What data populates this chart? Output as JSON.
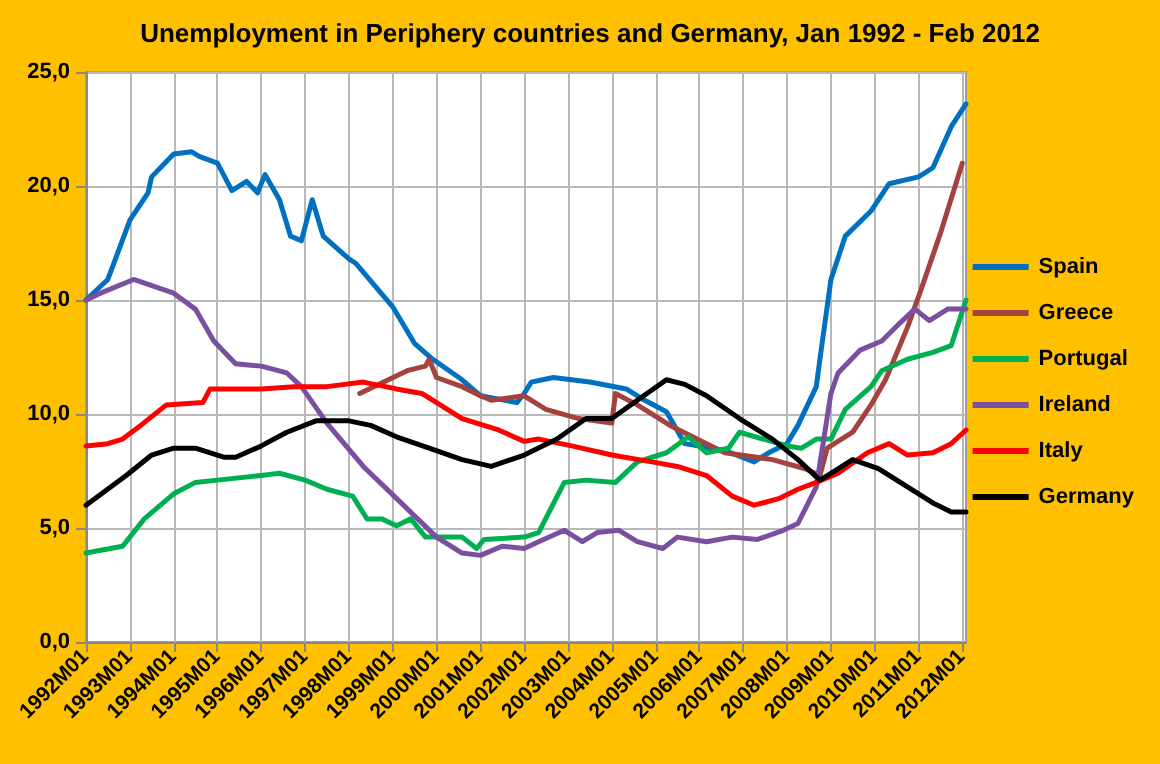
{
  "chart_data": {
    "type": "line",
    "title": "Unemployment in Periphery countries and Germany, Jan 1992 - Feb 2012",
    "xlim": [
      "1992-01",
      "2012-02"
    ],
    "xticks": [
      {
        "value": "1992-01",
        "label": "1992M01"
      },
      {
        "value": "1993-01",
        "label": "1993M01"
      },
      {
        "value": "1994-01",
        "label": "1994M01"
      },
      {
        "value": "1995-01",
        "label": "1995M01"
      },
      {
        "value": "1996-01",
        "label": "1996M01"
      },
      {
        "value": "1997-01",
        "label": "1997M01"
      },
      {
        "value": "1998-01",
        "label": "1998M01"
      },
      {
        "value": "1999-01",
        "label": "1999M01"
      },
      {
        "value": "2000-01",
        "label": "2000M01"
      },
      {
        "value": "2001-01",
        "label": "2001M01"
      },
      {
        "value": "2002-01",
        "label": "2002M01"
      },
      {
        "value": "2003-01",
        "label": "2003M01"
      },
      {
        "value": "2004-01",
        "label": "2004M01"
      },
      {
        "value": "2005-01",
        "label": "2005M01"
      },
      {
        "value": "2006-01",
        "label": "2006M01"
      },
      {
        "value": "2007-01",
        "label": "2007M01"
      },
      {
        "value": "2008-01",
        "label": "2008M01"
      },
      {
        "value": "2009-01",
        "label": "2009M01"
      },
      {
        "value": "2010-01",
        "label": "2010M01"
      },
      {
        "value": "2011-01",
        "label": "2011M01"
      },
      {
        "value": "2012-01",
        "label": "2012M01"
      }
    ],
    "ylim": [
      0,
      25
    ],
    "yticks": [
      {
        "value": 0,
        "label": "0,0"
      },
      {
        "value": 5,
        "label": "5,0"
      },
      {
        "value": 10,
        "label": "10,0"
      },
      {
        "value": 15,
        "label": "15,0"
      },
      {
        "value": 20,
        "label": "20,0"
      },
      {
        "value": 25,
        "label": "25,0"
      }
    ],
    "grid": true,
    "legend": "right",
    "marker": "none",
    "line_style": "solid",
    "series": [
      {
        "name": "Spain",
        "color": "#0070c0",
        "x": [
          "1992-01",
          "1992-07",
          "1993-01",
          "1993-06",
          "1993-07",
          "1994-01",
          "1994-06",
          "1994-08",
          "1995-01",
          "1995-05",
          "1995-09",
          "1995-12",
          "1996-02",
          "1996-06",
          "1996-09",
          "1996-12",
          "1997-03",
          "1997-06",
          "1998-01",
          "1998-03",
          "1999-01",
          "1999-07",
          "1999-12",
          "2000-08",
          "2001-01",
          "2001-11",
          "2002-01",
          "2002-03",
          "2002-09",
          "2003-07",
          "2004-05",
          "2004-10",
          "2005-04",
          "2005-09",
          "2006-08",
          "2007-04",
          "2007-08",
          "2008-01",
          "2008-04",
          "2008-09",
          "2008-10",
          "2009-01",
          "2009-05",
          "2009-12",
          "2010-05",
          "2011-01",
          "2011-05",
          "2011-10",
          "2012-02"
        ],
        "values": [
          15.0,
          15.9,
          18.5,
          19.7,
          20.4,
          21.4,
          21.5,
          21.3,
          21.0,
          19.8,
          20.2,
          19.7,
          20.5,
          19.4,
          17.8,
          17.6,
          19.4,
          17.8,
          16.8,
          16.6,
          14.7,
          13.1,
          12.4,
          11.5,
          10.8,
          10.5,
          10.9,
          11.4,
          11.6,
          11.4,
          11.1,
          10.6,
          10.1,
          8.7,
          8.4,
          7.9,
          8.3,
          8.7,
          9.5,
          11.2,
          12.4,
          15.9,
          17.8,
          18.9,
          20.1,
          20.4,
          20.8,
          22.6,
          23.6
        ]
      },
      {
        "name": "Greece",
        "color": "#a5423e",
        "x": [
          "1998-04",
          "1999-05",
          "1999-10",
          "1999-11",
          "2000-01",
          "2000-08",
          "2001-01",
          "2001-04",
          "2002-01",
          "2002-07",
          "2003-04",
          "2004-01",
          "2004-02",
          "2004-08",
          "2005-05",
          "2006-03",
          "2006-08",
          "2007-09",
          "2008-06",
          "2008-10",
          "2008-12",
          "2009-07",
          "2009-12",
          "2010-04",
          "2010-10",
          "2011-02",
          "2011-07",
          "2012-01"
        ],
        "values": [
          10.9,
          11.9,
          12.1,
          12.4,
          11.6,
          11.2,
          10.8,
          10.6,
          10.8,
          10.2,
          9.8,
          9.6,
          10.9,
          10.4,
          9.5,
          8.7,
          8.3,
          8.0,
          7.6,
          7.3,
          8.5,
          9.2,
          10.4,
          11.5,
          13.8,
          15.6,
          17.9,
          21.0
        ]
      },
      {
        "name": "Portugal",
        "color": "#00b050",
        "x": [
          "1992-01",
          "1992-11",
          "1993-05",
          "1994-01",
          "1994-07",
          "1995-01",
          "1996-01",
          "1996-06",
          "1997-01",
          "1997-07",
          "1998-02",
          "1998-06",
          "1998-10",
          "1999-02",
          "1999-06",
          "1999-10",
          "2000-08",
          "2000-12",
          "2001-02",
          "2002-01",
          "2002-05",
          "2002-12",
          "2003-06",
          "2004-02",
          "2004-08",
          "2005-04",
          "2005-10",
          "2006-03",
          "2006-09",
          "2006-12",
          "2008-01",
          "2008-05",
          "2008-09",
          "2009-01",
          "2009-05",
          "2009-12",
          "2010-03",
          "2010-10",
          "2011-05",
          "2011-10",
          "2012-02"
        ],
        "values": [
          3.9,
          4.2,
          5.4,
          6.5,
          7.0,
          7.1,
          7.3,
          7.4,
          7.1,
          6.7,
          6.4,
          5.4,
          5.4,
          5.1,
          5.4,
          4.6,
          4.6,
          4.1,
          4.5,
          4.6,
          4.8,
          7.0,
          7.1,
          7.0,
          7.9,
          8.3,
          9.0,
          8.3,
          8.5,
          9.2,
          8.6,
          8.5,
          8.9,
          8.9,
          10.2,
          11.2,
          11.9,
          12.4,
          12.7,
          13.0,
          15.0
        ]
      },
      {
        "name": "Ireland",
        "color": "#7a4fa0",
        "x": [
          "1992-01",
          "1992-05",
          "1993-02",
          "1994-01",
          "1994-07",
          "1994-12",
          "1995-06",
          "1996-01",
          "1996-08",
          "1996-12",
          "1997-07",
          "1998-05",
          "1999-02",
          "2000-01",
          "2000-08",
          "2001-01",
          "2001-07",
          "2002-01",
          "2002-05",
          "2002-12",
          "2003-05",
          "2003-09",
          "2004-03",
          "2004-08",
          "2005-03",
          "2005-07",
          "2006-03",
          "2006-10",
          "2007-05",
          "2007-12",
          "2008-04",
          "2008-09",
          "2009-01",
          "2009-03",
          "2009-09",
          "2010-03",
          "2010-08",
          "2010-12",
          "2011-04",
          "2011-09",
          "2012-02"
        ],
        "values": [
          15.0,
          15.3,
          15.9,
          15.3,
          14.6,
          13.2,
          12.2,
          12.1,
          11.8,
          11.2,
          9.6,
          7.7,
          6.3,
          4.6,
          3.9,
          3.8,
          4.2,
          4.1,
          4.4,
          4.9,
          4.4,
          4.8,
          4.9,
          4.4,
          4.1,
          4.6,
          4.4,
          4.6,
          4.5,
          4.9,
          5.2,
          6.8,
          10.9,
          11.8,
          12.8,
          13.2,
          14.0,
          14.6,
          14.1,
          14.6,
          14.6
        ]
      },
      {
        "name": "Italy",
        "color": "#ff0000",
        "x": [
          "1992-01",
          "1992-07",
          "1992-11",
          "1993-04",
          "1993-11",
          "1994-09",
          "1994-11",
          "1996-01",
          "1996-10",
          "1997-07",
          "1998-05",
          "1999-02",
          "1999-09",
          "2000-08",
          "2001-06",
          "2002-01",
          "2002-05",
          "2003-02",
          "2004-01",
          "2004-12",
          "2005-07",
          "2006-03",
          "2006-10",
          "2007-04",
          "2007-11",
          "2008-04",
          "2008-09",
          "2009-03",
          "2009-11",
          "2010-05",
          "2010-10",
          "2011-05",
          "2011-10",
          "2012-02"
        ],
        "values": [
          8.6,
          8.7,
          8.9,
          9.5,
          10.4,
          10.5,
          11.1,
          11.1,
          11.2,
          11.2,
          11.4,
          11.1,
          10.9,
          9.8,
          9.3,
          8.8,
          8.9,
          8.6,
          8.2,
          7.9,
          7.7,
          7.3,
          6.4,
          6.0,
          6.3,
          6.7,
          7.0,
          7.4,
          8.3,
          8.7,
          8.2,
          8.3,
          8.7,
          9.3
        ]
      },
      {
        "name": "Germany",
        "color": "#000000",
        "x": [
          "1992-01",
          "1992-12",
          "1993-07",
          "1994-01",
          "1994-07",
          "1995-03",
          "1995-06",
          "1996-01",
          "1996-08",
          "1997-04",
          "1998-01",
          "1998-07",
          "1999-02",
          "1999-11",
          "2000-08",
          "2001-04",
          "2002-01",
          "2002-10",
          "2003-06",
          "2004-01",
          "2004-08",
          "2005-04",
          "2005-09",
          "2006-03",
          "2006-12",
          "2007-09",
          "2008-04",
          "2008-10",
          "2009-01",
          "2009-07",
          "2010-02",
          "2010-10",
          "2011-05",
          "2011-10",
          "2012-02"
        ],
        "values": [
          6.0,
          7.3,
          8.2,
          8.5,
          8.5,
          8.1,
          8.1,
          8.6,
          9.2,
          9.7,
          9.7,
          9.5,
          9.0,
          8.5,
          8.0,
          7.7,
          8.2,
          8.9,
          9.8,
          9.8,
          10.6,
          11.5,
          11.3,
          10.8,
          9.8,
          8.9,
          8.0,
          7.1,
          7.4,
          8.0,
          7.6,
          6.8,
          6.1,
          5.7,
          5.7
        ]
      }
    ]
  }
}
